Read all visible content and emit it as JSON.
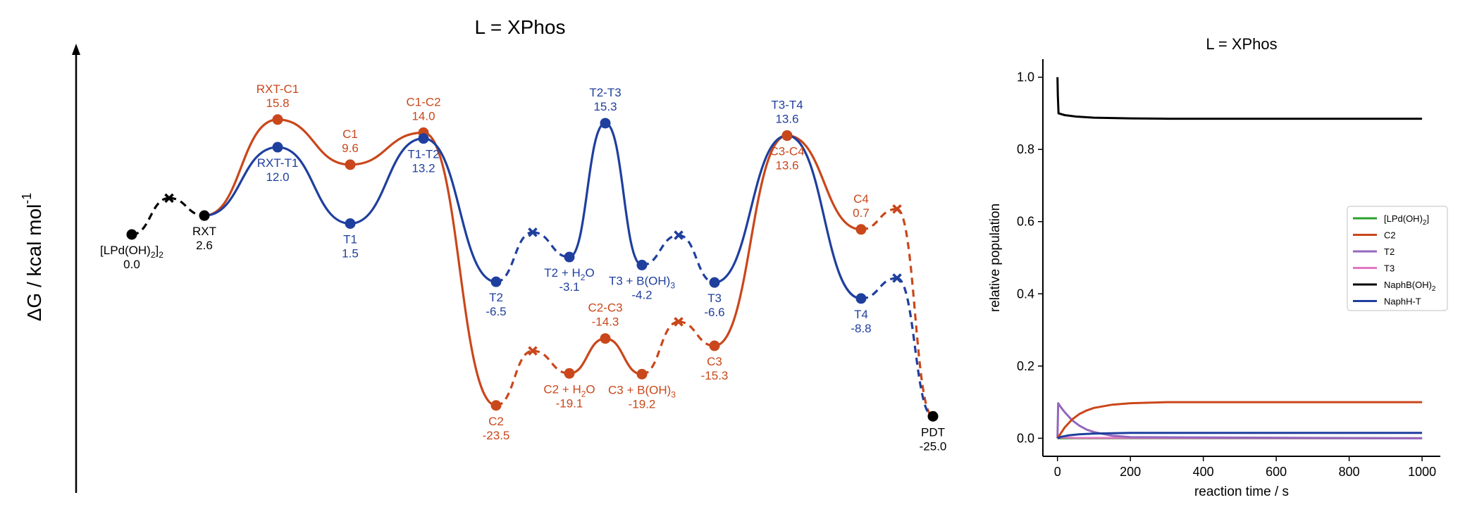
{
  "chart_data": [
    {
      "type": "line",
      "title": "L = XPhos",
      "ylabel": "ΔG / kcal mol",
      "ylabel_sup": "-1",
      "colors": {
        "black": "#000000",
        "C": "#c9471b",
        "T": "#1f3f9e"
      },
      "states": [
        {
          "id": "LPd",
          "label": "[LPd(OH)",
          "sub": "2",
          "label_after": "]",
          "sub2": "2",
          "value": "0.0",
          "g": 0.0,
          "color": "black",
          "label_pos": "below"
        },
        {
          "id": "RXT",
          "label": "RXT",
          "value": "2.6",
          "g": 2.6,
          "color": "black",
          "label_pos": "below"
        },
        {
          "id": "RXT-C1",
          "label": "RXT-C1",
          "value": "15.8",
          "g": 15.8,
          "color": "C",
          "label_pos": "above"
        },
        {
          "id": "RXT-T1",
          "label": "RXT-T1",
          "value": "12.0",
          "g": 12.0,
          "color": "T",
          "label_pos": "below"
        },
        {
          "id": "C1",
          "label": "C1",
          "value": "9.6",
          "g": 9.6,
          "color": "C",
          "label_pos": "above"
        },
        {
          "id": "T1",
          "label": "T1",
          "value": "1.5",
          "g": 1.5,
          "color": "T",
          "label_pos": "below"
        },
        {
          "id": "C1-C2",
          "label": "C1-C2",
          "value": "14.0",
          "g": 14.0,
          "color": "C",
          "label_pos": "above"
        },
        {
          "id": "T1-T2",
          "label": "T1-T2",
          "value": "13.2",
          "g": 13.2,
          "color": "T",
          "label_pos": "below"
        },
        {
          "id": "T2",
          "label": "T2",
          "value": "-6.5",
          "g": -6.5,
          "color": "T",
          "label_pos": "below"
        },
        {
          "id": "C2",
          "label": "C2",
          "value": "-23.5",
          "g": -23.5,
          "color": "C",
          "label_pos": "below"
        },
        {
          "id": "T2+H2O",
          "label": "T2 + H",
          "sub": "2",
          "label_after": "O",
          "value": "-3.1",
          "g": -3.1,
          "color": "T",
          "label_pos": "below"
        },
        {
          "id": "C2+H2O",
          "label": "C2 + H",
          "sub": "2",
          "label_after": "O",
          "value": "-19.1",
          "g": -19.1,
          "color": "C",
          "label_pos": "below"
        },
        {
          "id": "T2-T3",
          "label": "T2-T3",
          "value": "15.3",
          "g": 15.3,
          "color": "T",
          "label_pos": "above"
        },
        {
          "id": "C2-C3",
          "label": "C2-C3",
          "value": "-14.3",
          "g": -14.3,
          "color": "C",
          "label_pos": "above"
        },
        {
          "id": "T3+BOH3",
          "label": "T3 + B(OH)",
          "sub": "3",
          "label_after": "",
          "value": "-4.2",
          "g": -4.2,
          "color": "T",
          "label_pos": "below"
        },
        {
          "id": "C3+BOH3",
          "label": "C3 + B(OH)",
          "sub": "3",
          "label_after": "",
          "value": "-19.2",
          "g": -19.2,
          "color": "C",
          "label_pos": "below"
        },
        {
          "id": "T3",
          "label": "T3",
          "value": "-6.6",
          "g": -6.6,
          "color": "T",
          "label_pos": "below"
        },
        {
          "id": "C3",
          "label": "C3",
          "value": "-15.3",
          "g": -15.3,
          "color": "C",
          "label_pos": "below"
        },
        {
          "id": "T3-T4",
          "label": "T3-T4",
          "value": "13.6",
          "g": 13.6,
          "color": "T",
          "label_pos": "above"
        },
        {
          "id": "C3-C4",
          "label": "C3-C4",
          "value": "13.6",
          "g": 13.6,
          "color": "C",
          "label_pos": "below"
        },
        {
          "id": "C4",
          "label": "C4",
          "value": "0.7",
          "g": 0.7,
          "color": "C",
          "label_pos": "above"
        },
        {
          "id": "T4",
          "label": "T4",
          "value": "-8.8",
          "g": -8.8,
          "color": "T",
          "label_pos": "below"
        },
        {
          "id": "PDT",
          "label": "PDT",
          "value": "-25.0",
          "g": -25.0,
          "color": "black",
          "label_pos": "below"
        }
      ],
      "series": [
        {
          "color": "black",
          "path": [
            "LPd",
            "xA",
            "RXT"
          ],
          "style": [
            "dashed",
            "dashed"
          ]
        },
        {
          "color": "C",
          "path": [
            "RXT",
            "RXT-C1",
            "C1",
            "C1-C2",
            "C2",
            "xC1",
            "C2+H2O",
            "C2-C3",
            "C3+BOH3",
            "xC2",
            "C3",
            "C3-C4",
            "C4",
            "xC3",
            "PDT"
          ],
          "style": [
            "solid",
            "solid",
            "solid",
            "solid",
            "dashed",
            "dashed",
            "solid",
            "solid",
            "dashed",
            "dashed",
            "solid",
            "solid",
            "dashed",
            "dashed"
          ]
        },
        {
          "color": "T",
          "path": [
            "RXT",
            "RXT-T1",
            "T1",
            "T1-T2",
            "T2",
            "xT1",
            "T2+H2O",
            "T2-T3",
            "T3+BOH3",
            "xT2",
            "T3",
            "T3-T4",
            "T4",
            "xT3",
            "PDT"
          ],
          "style": [
            "solid",
            "solid",
            "solid",
            "solid",
            "dashed",
            "dashed",
            "solid",
            "solid",
            "dashed",
            "dashed",
            "solid",
            "solid",
            "dashed",
            "dashed"
          ]
        }
      ],
      "crosses": [
        {
          "id": "xA",
          "g": 5.0,
          "color": "black"
        },
        {
          "id": "xC1",
          "g": -16.0,
          "color": "C"
        },
        {
          "id": "xC2",
          "g": -12.0,
          "color": "C"
        },
        {
          "id": "xC3",
          "g": 3.5,
          "color": "C"
        },
        {
          "id": "xT1",
          "g": 0.3,
          "color": "T"
        },
        {
          "id": "xT2",
          "g": -0.1,
          "color": "T"
        },
        {
          "id": "xT3",
          "g": -6.0,
          "color": "T"
        }
      ]
    },
    {
      "type": "line",
      "title": "L = XPhos",
      "xlabel": "reaction time / s",
      "ylabel": "relative population",
      "xlim": [
        -40,
        1050
      ],
      "ylim": [
        -0.05,
        1.05
      ],
      "xticks": [
        "0",
        "200",
        "400",
        "600",
        "800",
        "1000"
      ],
      "xtick_values": [
        0,
        200,
        400,
        600,
        800,
        1000
      ],
      "yticks": [
        "0.0",
        "0.2",
        "0.4",
        "0.6",
        "0.8",
        "1.0"
      ],
      "ytick_values": [
        0.0,
        0.2,
        0.4,
        0.6,
        0.8,
        1.0
      ],
      "legend_position": "center-right",
      "legend": [
        {
          "label": "[LPd(OH)",
          "sub": "2",
          "label_after": "]",
          "color": "#2ca02c"
        },
        {
          "label": "C2",
          "sub": "",
          "label_after": "",
          "color": "#c9471b"
        },
        {
          "label": "T2",
          "sub": "",
          "label_after": "",
          "color": "#9467bd"
        },
        {
          "label": "T3",
          "sub": "",
          "label_after": "",
          "color": "#e377c2"
        },
        {
          "label": "NaphB(OH)",
          "sub": "2",
          "label_after": "",
          "color": "#000000"
        },
        {
          "label": "NaphH-T",
          "sub": "",
          "label_after": "",
          "color": "#1f3f9e"
        }
      ],
      "series": [
        {
          "name": "[LPd(OH)2]",
          "color": "#2ca02c",
          "x": [
            0,
            1,
            1000
          ],
          "y": [
            0.0,
            0.0,
            0.0
          ]
        },
        {
          "name": "T3",
          "color": "#e377c2",
          "x": [
            0,
            10,
            50,
            1000
          ],
          "y": [
            0.0,
            0.002,
            0.001,
            0.0
          ]
        },
        {
          "name": "T2",
          "color": "#9467bd",
          "x": [
            0,
            2,
            10,
            20,
            40,
            60,
            80,
            100,
            150,
            200,
            1000
          ],
          "y": [
            0.0,
            0.097,
            0.085,
            0.072,
            0.05,
            0.035,
            0.024,
            0.017,
            0.007,
            0.003,
            0.0
          ]
        },
        {
          "name": "C2",
          "color": "#c9471b",
          "x": [
            0,
            10,
            20,
            40,
            60,
            80,
            100,
            150,
            200,
            300,
            1000
          ],
          "y": [
            0.0,
            0.015,
            0.03,
            0.052,
            0.067,
            0.077,
            0.084,
            0.093,
            0.097,
            0.1,
            0.1
          ]
        },
        {
          "name": "NaphH-T",
          "color": "#1f3f9e",
          "x": [
            0,
            10,
            30,
            60,
            100,
            150,
            200,
            1000
          ],
          "y": [
            0.0,
            0.004,
            0.008,
            0.011,
            0.013,
            0.014,
            0.015,
            0.015
          ]
        },
        {
          "name": "NaphB(OH)2",
          "color": "#000000",
          "x": [
            0,
            1,
            3,
            20,
            50,
            100,
            200,
            300,
            1000
          ],
          "y": [
            1.0,
            0.95,
            0.9,
            0.895,
            0.891,
            0.888,
            0.886,
            0.885,
            0.885
          ]
        }
      ]
    }
  ]
}
